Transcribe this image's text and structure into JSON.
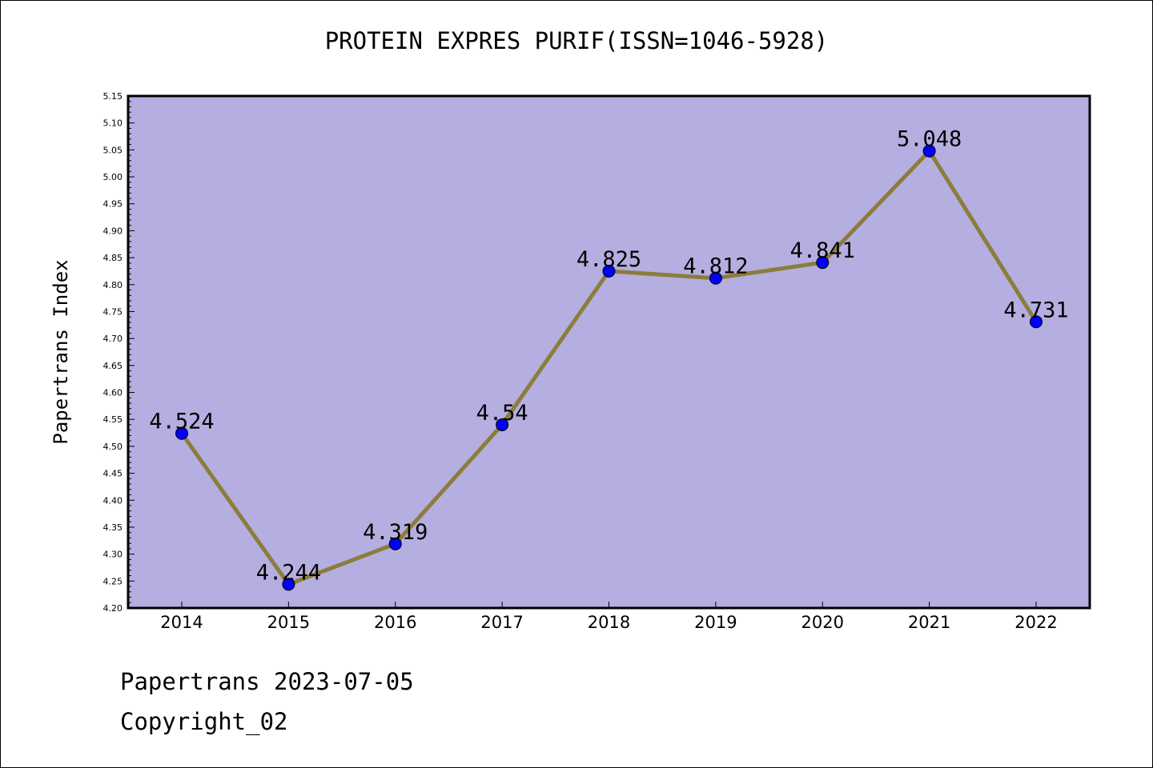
{
  "chart_data": {
    "type": "line",
    "title": "PROTEIN EXPRES PURIF(ISSN=1046-5928)",
    "xlabel": "",
    "ylabel": "Papertrans Index",
    "categories": [
      "2014",
      "2015",
      "2016",
      "2017",
      "2018",
      "2019",
      "2020",
      "2021",
      "2022"
    ],
    "series": [
      {
        "values": [
          4.524,
          4.244,
          4.319,
          4.54,
          4.825,
          4.812,
          4.841,
          5.048,
          4.731
        ],
        "labels": [
          "4.524",
          "4.244",
          "4.319",
          "4.54",
          "4.825",
          "4.812",
          "4.841",
          "5.048",
          "4.731"
        ]
      }
    ],
    "ylim": [
      4.2,
      5.15
    ],
    "y_ticks": [
      "4.20",
      "4.25",
      "4.30",
      "4.35",
      "4.40",
      "4.45",
      "4.50",
      "4.55",
      "4.60",
      "4.65",
      "4.70",
      "4.75",
      "4.80",
      "4.85",
      "4.90",
      "4.95",
      "5.00",
      "5.05",
      "5.10",
      "5.15"
    ],
    "grid": false,
    "colors": {
      "plot_background": "#b5aee0",
      "line": "#8b7d3a",
      "marker": "#0000ff"
    }
  },
  "footer": {
    "date_text": "Papertrans 2023-07-05",
    "copyright_text": "Copyright_02"
  }
}
